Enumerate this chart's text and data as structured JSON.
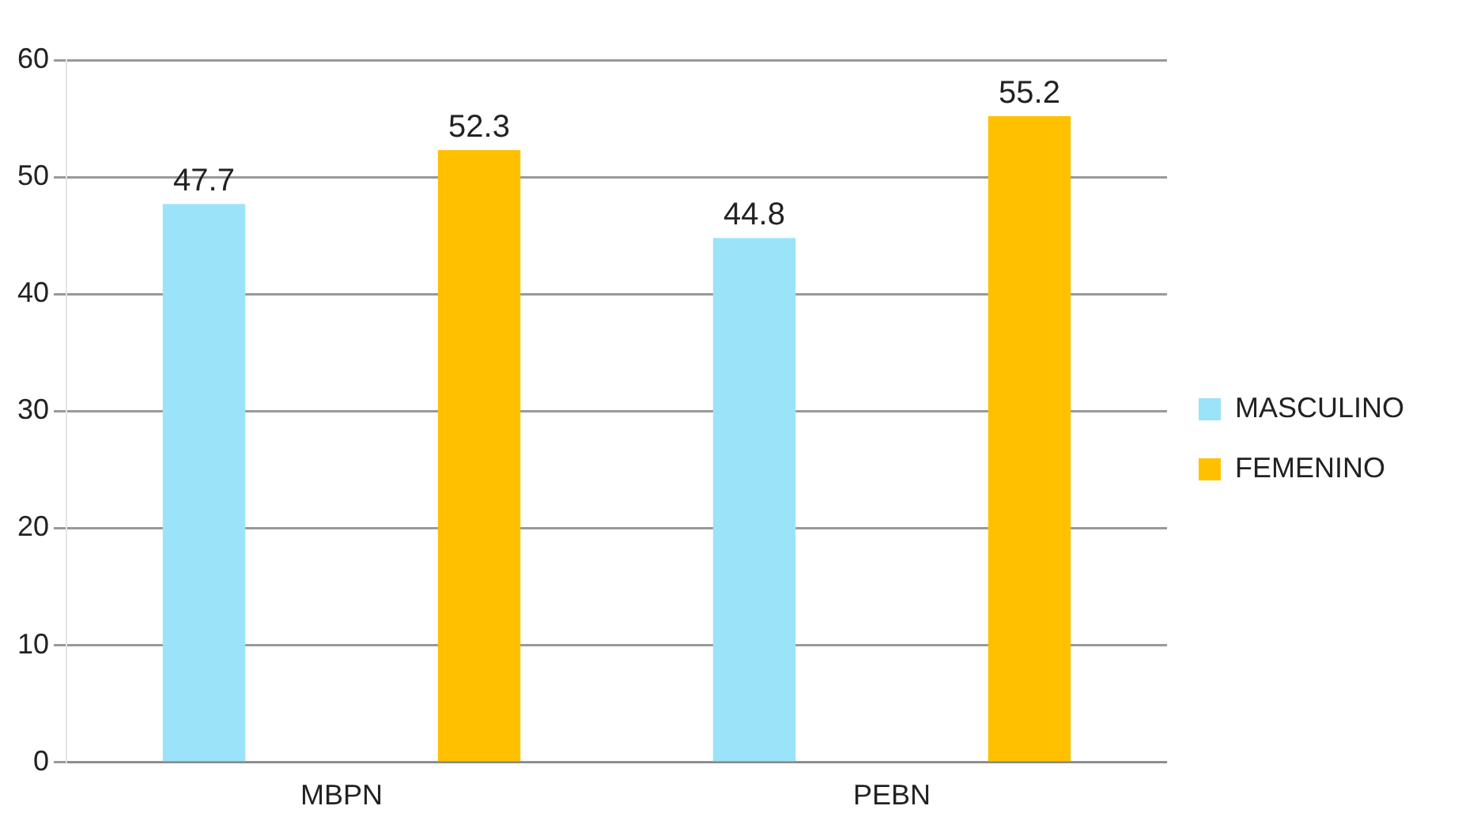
{
  "chart_data": {
    "type": "bar",
    "categories": [
      "MBPN",
      "PEBN"
    ],
    "series": [
      {
        "name": "MASCULINO",
        "color": "#9be3f8",
        "values": [
          47.7,
          44.8
        ]
      },
      {
        "name": "FEMENINO",
        "color": "#ffc000",
        "values": [
          52.3,
          55.2
        ]
      }
    ],
    "ylim": [
      0,
      60
    ],
    "yticks": [
      0,
      10,
      20,
      30,
      40,
      50,
      60
    ],
    "grid": "y",
    "legend": "right",
    "data_labels": true
  }
}
